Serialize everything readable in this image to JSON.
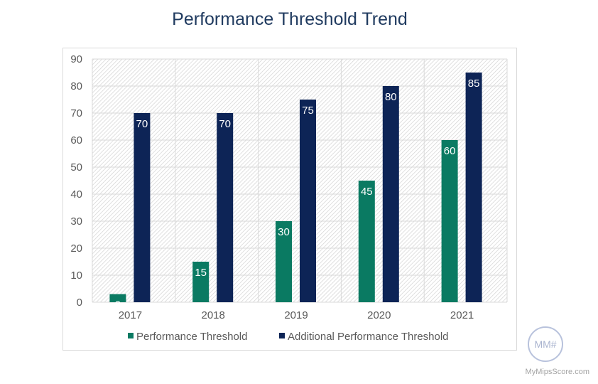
{
  "chart_data": {
    "type": "bar",
    "title": "Performance Threshold Trend",
    "categories": [
      "2017",
      "2018",
      "2019",
      "2020",
      "2021"
    ],
    "series": [
      {
        "name": "Performance Threshold",
        "color": "#0a7a62",
        "values": [
          3,
          15,
          30,
          45,
          60
        ]
      },
      {
        "name": "Additional Performance Threshold",
        "color": "#0d2456",
        "values": [
          70,
          70,
          75,
          80,
          85
        ]
      }
    ],
    "ylim": [
      0,
      90
    ],
    "yticks": [
      "0",
      "10",
      "20",
      "30",
      "40",
      "50",
      "60",
      "70",
      "80",
      "90"
    ],
    "xlabel": "",
    "ylabel": "",
    "grid": true,
    "legend": "bottom",
    "data_labels": true
  },
  "watermark": {
    "logo_text": "MM#",
    "site": "MyMipsScore.com"
  }
}
